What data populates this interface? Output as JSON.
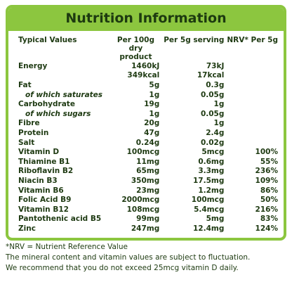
{
  "title": "Nutrition Information",
  "headers": [
    "Typical Values",
    "Per 100g\ndry product",
    "Per 5g serving",
    "NRV* Per 5g"
  ],
  "rows": [
    {
      "name": "Energy",
      "per100": "1460kJ",
      "per5": "73kJ",
      "nrv": ""
    },
    {
      "name": "",
      "per100": "349kcal",
      "per5": "17kcal",
      "nrv": ""
    },
    {
      "name": "Fat",
      "per100": "5g",
      "per5": "0.3g",
      "nrv": ""
    },
    {
      "name": "of which saturates",
      "per100": "1g",
      "per5": "0.05g",
      "nrv": ""
    },
    {
      "name": "Carbohydrate",
      "per100": "19g",
      "per5": "1g",
      "nrv": ""
    },
    {
      "name": "of which sugars",
      "per100": "1g",
      "per5": "0.05g",
      "nrv": ""
    },
    {
      "name": "Fibre",
      "per100": "20g",
      "per5": "1g",
      "nrv": ""
    },
    {
      "name": "Protein",
      "per100": "47g",
      "per5": "2.4g",
      "nrv": ""
    },
    {
      "name": "Salt",
      "per100": "0.24g",
      "per5": "0.02g",
      "nrv": ""
    },
    {
      "name": "Vitamin D",
      "per100": "100mcg",
      "per5": "5mcg",
      "nrv": "100%"
    },
    {
      "name": "Thiamine B1",
      "per100": "11mg",
      "per5": "0.6mg",
      "nrv": "55%"
    },
    {
      "name": "Riboflavin B2",
      "per100": "65mg",
      "per5": "3.3mg",
      "nrv": "236%"
    },
    {
      "name": "Niacin B3",
      "per100": "350mg",
      "per5": "17.5mg",
      "nrv": "109%"
    },
    {
      "name": "Vitamin B6",
      "per100": "23mg",
      "per5": "1.2mg",
      "nrv": "86%"
    },
    {
      "name": "Folic Acid B9",
      "per100": "2000mcg",
      "per5": "100mcg",
      "nrv": "50%"
    },
    {
      "name": "Vitamin B12",
      "per100": "108mcg",
      "per5": "5.4mcg",
      "nrv": "216%"
    },
    {
      "name": "Pantothenic acid B5",
      "per100": "99mg",
      "per5": "5mg",
      "nrv": "83%"
    },
    {
      "name": "Zinc",
      "per100": "247mg",
      "per5": "12.4mg",
      "nrv": "124%"
    }
  ],
  "footer": [
    "*NRV = Nutrient Reference Value",
    "The mineral content and vitamin values are subject to fluctuation.",
    "We recommend that you do not exceed 25mcg vitamin D daily."
  ]
}
